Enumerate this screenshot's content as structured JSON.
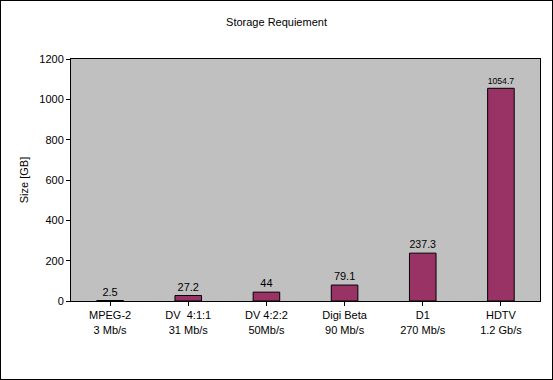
{
  "chart_data": {
    "type": "bar",
    "title": "Storage Requiement",
    "y_label": "Size [GB]",
    "categories": [
      "MPEG-2\n3 Mb/s",
      "DV  4:1:1\n31 Mb/s",
      "DV 4:2:2\n50Mb/s",
      "Digi Beta\n90 Mb/s",
      "D1\n270 Mb/s",
      "HDTV\n1.2 Gb/s"
    ],
    "values": [
      2.5,
      27.2,
      44,
      79.1,
      237.3,
      1054.7
    ],
    "color": "#993366",
    "ylim": [
      0,
      1200
    ],
    "yticks": [
      0,
      200,
      400,
      600,
      800,
      1000,
      1200
    ],
    "grid": false,
    "data_labels": true
  }
}
